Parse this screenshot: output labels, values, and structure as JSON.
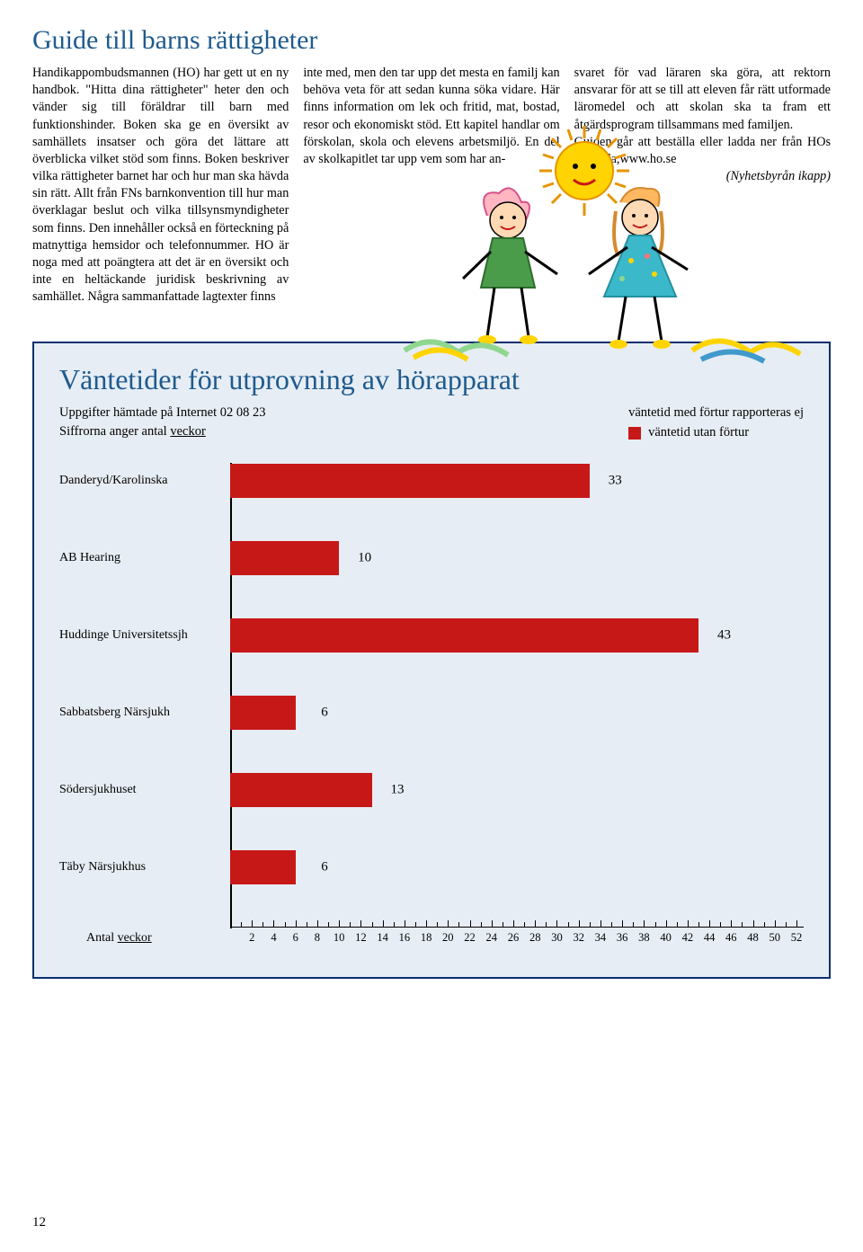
{
  "article": {
    "title": "Guide till barns rättigheter",
    "col1": "Handikappombudsmannen (HO) har gett ut en ny handbok. \"Hitta dina rättigheter\" heter den och vänder sig till föräldrar till barn med funktionshinder. Boken ska ge en översikt av samhällets insatser och göra det lättare att överblicka vilket stöd som finns. Boken beskriver vilka rättigheter barnet har och hur man ska hävda sin rätt. Allt från FNs barnkonvention till hur man överklagar beslut och vilka tillsynsmyndigheter som finns. Den innehåller också en förteckning på matnyttiga hemsidor och telefonnummer. HO är noga med att poängtera att det är en översikt och inte en heltäckande juridisk beskrivning av samhället. Några sammanfattade lagtexter finns",
    "col2": "inte med, men den tar upp det mesta en familj kan behöva veta för att sedan kunna söka vidare. Här finns information om lek och fritid, mat, bostad, resor och ekonomiskt stöd. Ett kapitel handlar om förskolan, skola och elevens arbetsmiljö. En del av skolkapitlet tar upp vem som har an-",
    "col3": "svaret för vad läraren ska göra, att rektorn ansvarar för att se till att eleven får rätt utformade läromedel och att skolan ska ta fram ett åtgärdsprogram tillsammans med familjen.",
    "col3b": "Guiden går att beställa eller ladda ner från HOs hemsida,www.ho.se",
    "col3c": "(Nyhetsbyrån ikapp)"
  },
  "chart": {
    "title": "Väntetider för utprovning av hörapparat",
    "subtitle_l1": "Uppgifter hämtade på Internet 02 08 23",
    "subtitle_l2a": "Siffrorna anger antal ",
    "subtitle_l2b": "veckor",
    "legend1": "väntetid med förtur rapporteras ej",
    "legend2": "väntetid utan förtur",
    "legend2_color": "#c71818",
    "bar_color": "#c71818",
    "bg_color": "#e6edf4",
    "border_color": "#0b2e6f",
    "xmax": 52,
    "bars": [
      {
        "label": "Danderyd/Karolinska",
        "value": 33
      },
      {
        "label": "AB Hearing",
        "value": 10
      },
      {
        "label": "Huddinge Universitetssjh",
        "value": 43
      },
      {
        "label": "Sabbatsberg Närsjukh",
        "value": 6
      },
      {
        "label": "Södersjukhuset",
        "value": 13
      },
      {
        "label": "Täby Närsjukhus",
        "value": 6
      }
    ],
    "xticks": [
      2,
      4,
      6,
      8,
      10,
      12,
      14,
      16,
      18,
      20,
      22,
      24,
      26,
      28,
      30,
      32,
      34,
      36,
      38,
      40,
      42,
      44,
      46,
      48,
      50,
      52
    ],
    "xaxis_label_a": "Antal ",
    "xaxis_label_b": "veckor"
  },
  "page_number": "12"
}
